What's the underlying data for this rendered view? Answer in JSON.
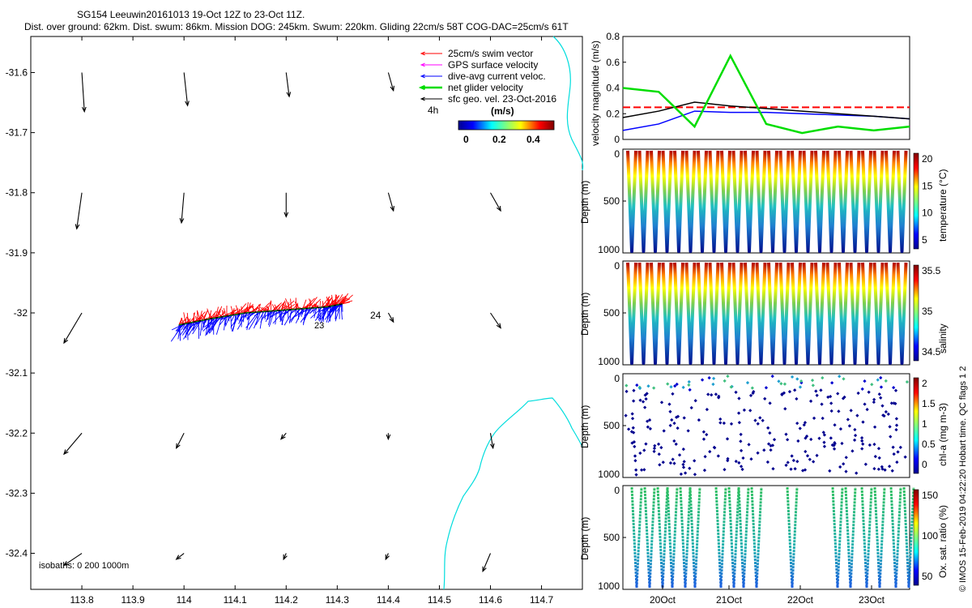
{
  "header": {
    "title_line1": "SG154 Leeuwin20161013 19-Oct 12Z to 23-Oct 11Z.",
    "title_line2": "Dist. over ground: 62km. Dist. swum: 86km. Mission DOG: 245km. Swum: 220km. Gliding 22cm/s 58T COG-DAC=25cm/s 61T"
  },
  "map": {
    "legend": [
      {
        "label": "25cm/s swim vector",
        "color": "#ff0000"
      },
      {
        "label": "GPS surface velocity",
        "color": "#ff00ff"
      },
      {
        "label": "dive-avg current veloc.",
        "color": "#0000ff"
      },
      {
        "label": "net glider velocity",
        "color": "#00dd00"
      },
      {
        "label": "sfc geo. vel. 23-Oct-2016",
        "color": "#000000"
      }
    ],
    "legend_4h": "4h",
    "colorbar_unit": "(m/s)",
    "colorbar_ticks": [
      "0",
      "0.2",
      "0.4"
    ],
    "isobaths_label": "isobaths: 0   200  1000m",
    "marker_label_24": "24",
    "marker_label_23": "23",
    "coast_color": "#00dddd"
  },
  "side_annotation": "© IMOS 15-Feb-2019 04:22:20 Hobart time. QC flags 1  2",
  "chart_data": [
    {
      "type": "scatter",
      "title": "Glider track map with surface geostrophic velocity vectors",
      "xlabel": "",
      "ylabel": "",
      "xlim": [
        113.7,
        114.78
      ],
      "ylim": [
        -32.46,
        -31.54
      ],
      "xticks": [
        "113.8",
        "113.9",
        "114",
        "114.1",
        "114.2",
        "114.3",
        "114.4",
        "114.5",
        "114.6",
        "114.7"
      ],
      "yticks": [
        "-31.6",
        "-31.7",
        "-31.8",
        "-31.9",
        "-32",
        "-32.1",
        "-32.2",
        "-32.3",
        "-32.4"
      ],
      "geo_vectors_start": [
        [
          113.8,
          -31.6
        ],
        [
          114.0,
          -31.6
        ],
        [
          114.2,
          -31.6
        ],
        [
          114.4,
          -31.6
        ],
        [
          113.8,
          -31.8
        ],
        [
          114.0,
          -31.8
        ],
        [
          114.2,
          -31.8
        ],
        [
          114.4,
          -31.8
        ],
        [
          114.6,
          -31.8
        ],
        [
          113.8,
          -32.0
        ],
        [
          114.4,
          -32.0
        ],
        [
          114.6,
          -32.0
        ],
        [
          113.8,
          -32.2
        ],
        [
          114.0,
          -32.2
        ],
        [
          114.2,
          -32.2
        ],
        [
          114.4,
          -32.2
        ],
        [
          114.6,
          -32.2
        ],
        [
          113.8,
          -32.4
        ],
        [
          114.0,
          -32.4
        ],
        [
          114.2,
          -32.4
        ],
        [
          114.4,
          -32.4
        ],
        [
          114.6,
          -32.4
        ]
      ],
      "geo_vectors_end": [
        [
          113.805,
          -31.665
        ],
        [
          114.007,
          -31.655
        ],
        [
          114.206,
          -31.64
        ],
        [
          114.41,
          -31.63
        ],
        [
          113.79,
          -31.86
        ],
        [
          113.995,
          -31.85
        ],
        [
          114.2,
          -31.84
        ],
        [
          114.41,
          -31.83
        ],
        [
          114.62,
          -31.83
        ],
        [
          113.765,
          -32.05
        ],
        [
          114.41,
          -32.015
        ],
        [
          114.62,
          -32.025
        ],
        [
          113.765,
          -32.235
        ],
        [
          113.985,
          -32.225
        ],
        [
          114.19,
          -32.21
        ],
        [
          114.4,
          -32.21
        ],
        [
          114.605,
          -32.225
        ],
        [
          113.765,
          -32.42
        ],
        [
          113.985,
          -32.41
        ],
        [
          114.195,
          -32.41
        ],
        [
          114.395,
          -32.41
        ],
        [
          114.585,
          -32.43
        ]
      ],
      "track_lon": [
        113.99,
        114.05,
        114.12,
        114.2,
        114.28,
        114.31
      ],
      "track_lat": [
        -32.02,
        -32.01,
        -32.0,
        -31.995,
        -31.99,
        -31.985
      ]
    },
    {
      "type": "line",
      "xlabel": "",
      "ylabel": "velocity magnitude (m/s)",
      "ylim": [
        0,
        0.8
      ],
      "yticks": [
        "0",
        "0.2",
        "0.4",
        "0.6",
        "0.8"
      ],
      "x": [
        0,
        0.5,
        1,
        1.5,
        2,
        2.5,
        3,
        3.5,
        4
      ],
      "series": [
        {
          "name": "swim",
          "color": "#ff0000",
          "values": [
            0.25,
            0.25,
            0.25,
            0.25,
            0.25,
            0.25,
            0.25,
            0.25,
            0.25
          ]
        },
        {
          "name": "dive-avg current",
          "color": "#0000ff",
          "values": [
            0.07,
            0.12,
            0.22,
            0.21,
            0.21,
            0.2,
            0.19,
            0.18,
            0.16
          ]
        },
        {
          "name": "geostrophic",
          "color": "#000000",
          "values": [
            0.17,
            0.22,
            0.29,
            0.26,
            0.24,
            0.22,
            0.2,
            0.18,
            0.16
          ]
        },
        {
          "name": "net glider",
          "color": "#00dd00",
          "values": [
            0.4,
            0.37,
            0.1,
            0.65,
            0.12,
            0.05,
            0.1,
            0.07,
            0.1
          ]
        }
      ],
      "xticks": [
        "20Oct",
        "21Oct",
        "22Oct",
        "23Oct"
      ]
    },
    {
      "type": "scatter",
      "ylabel": "Depth (m)",
      "yticks": [
        "0",
        "500",
        "1000"
      ],
      "colorbar_label": "temperature (°C)",
      "colorbar_ticks": [
        "20",
        "15",
        "10",
        "5"
      ],
      "profiles": 24
    },
    {
      "type": "scatter",
      "ylabel": "Depth (m)",
      "yticks": [
        "0",
        "500",
        "1000"
      ],
      "colorbar_label": "salinity",
      "colorbar_ticks": [
        "35.5",
        "35",
        "34.5"
      ],
      "profiles": 24
    },
    {
      "type": "scatter",
      "ylabel": "Depth (m)",
      "yticks": [
        "0",
        "500",
        "1000"
      ],
      "colorbar_label": "chl-a (mg m-3)",
      "colorbar_ticks": [
        "2",
        "1.5",
        "1",
        "0.5",
        "0"
      ],
      "profiles": 24
    },
    {
      "type": "scatter",
      "ylabel": "Depth (m)",
      "yticks": [
        "0",
        "500",
        "1000"
      ],
      "colorbar_label": "Ox. sat. ratio (%)",
      "colorbar_ticks": [
        "150",
        "100",
        "50"
      ],
      "xticks": [
        "20Oct",
        "21Oct",
        "22Oct",
        "23Oct"
      ],
      "profiles": 15
    }
  ]
}
